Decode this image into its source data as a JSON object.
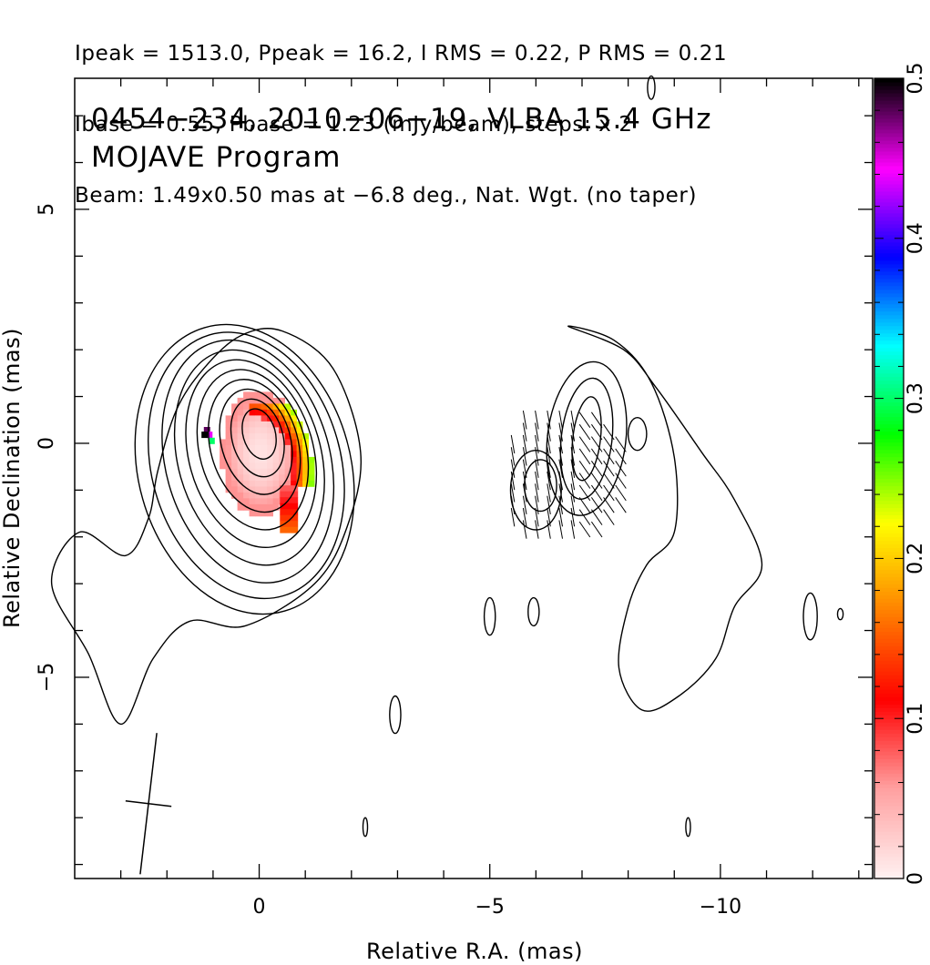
{
  "header": {
    "line1": "Ipeak = 1513.0, Ppeak = 16.2, I RMS = 0.22, P RMS = 0.21",
    "line2": "Ibase = 0.55, Pbase = 1.23 (mJy/beam), steps: x 2",
    "line3": "Beam: 1.49x0.50 mas at −6.8 deg., Nat. Wgt. (no taper)"
  },
  "chart_data": {
    "type": "heatmap",
    "title": "0454−234, 2010−06−19, VLBA 15.4 GHz",
    "subtitle": "MOJAVE Program",
    "xlabel": "Relative R.A. (mas)",
    "ylabel": "Relative Declination (mas)",
    "xlim": [
      4,
      -13.3
    ],
    "ylim": [
      -9.3,
      7.8
    ],
    "x_ticks": [
      0,
      -5,
      -10
    ],
    "x_tick_labels": [
      "0",
      "−5",
      "−10"
    ],
    "y_ticks": [
      5,
      0,
      -5
    ],
    "y_tick_labels": [
      "5",
      "0",
      "−5"
    ],
    "grid": false,
    "colorbar": {
      "min": 0,
      "max": 0.5,
      "ticks": [
        0,
        0.1,
        0.2,
        0.3,
        0.4,
        0.5
      ],
      "tick_labels": [
        "0",
        "0.1",
        "0.2",
        "0.3",
        "0.4",
        "0.5"
      ],
      "colors": [
        "#fff0f0",
        "#ffa0a0",
        "#ff0000",
        "#ff8000",
        "#ffff00",
        "#00ff00",
        "#00ffff",
        "#0000ff",
        "#ff00ff",
        "#000000"
      ]
    },
    "core_contours": {
      "center": [
        0,
        0.2
      ],
      "levels": [
        {
          "a": 0.35,
          "b": 0.55
        },
        {
          "a": 0.55,
          "b": 0.85
        },
        {
          "a": 0.75,
          "b": 1.15
        },
        {
          "a": 0.95,
          "b": 1.45
        },
        {
          "a": 1.15,
          "b": 1.75
        },
        {
          "a": 1.35,
          "b": 2.05
        },
        {
          "a": 1.55,
          "b": 2.35
        },
        {
          "a": 1.78,
          "b": 2.65
        },
        {
          "a": 2.05,
          "b": 2.9
        },
        {
          "a": 2.3,
          "b": 3.15
        }
      ]
    },
    "secondary_component_contours": {
      "center": [
        -7.1,
        0.1
      ],
      "levels": [
        {
          "a": 0.3,
          "b": 0.9
        },
        {
          "a": 0.55,
          "b": 1.3
        },
        {
          "a": 0.85,
          "b": 1.65
        }
      ]
    },
    "polarization_peak": 16.2,
    "beam": {
      "major_mas": 1.49,
      "minor_mas": 0.5,
      "pa_deg": -6.8,
      "position": [
        2.4,
        -7.7
      ]
    }
  }
}
